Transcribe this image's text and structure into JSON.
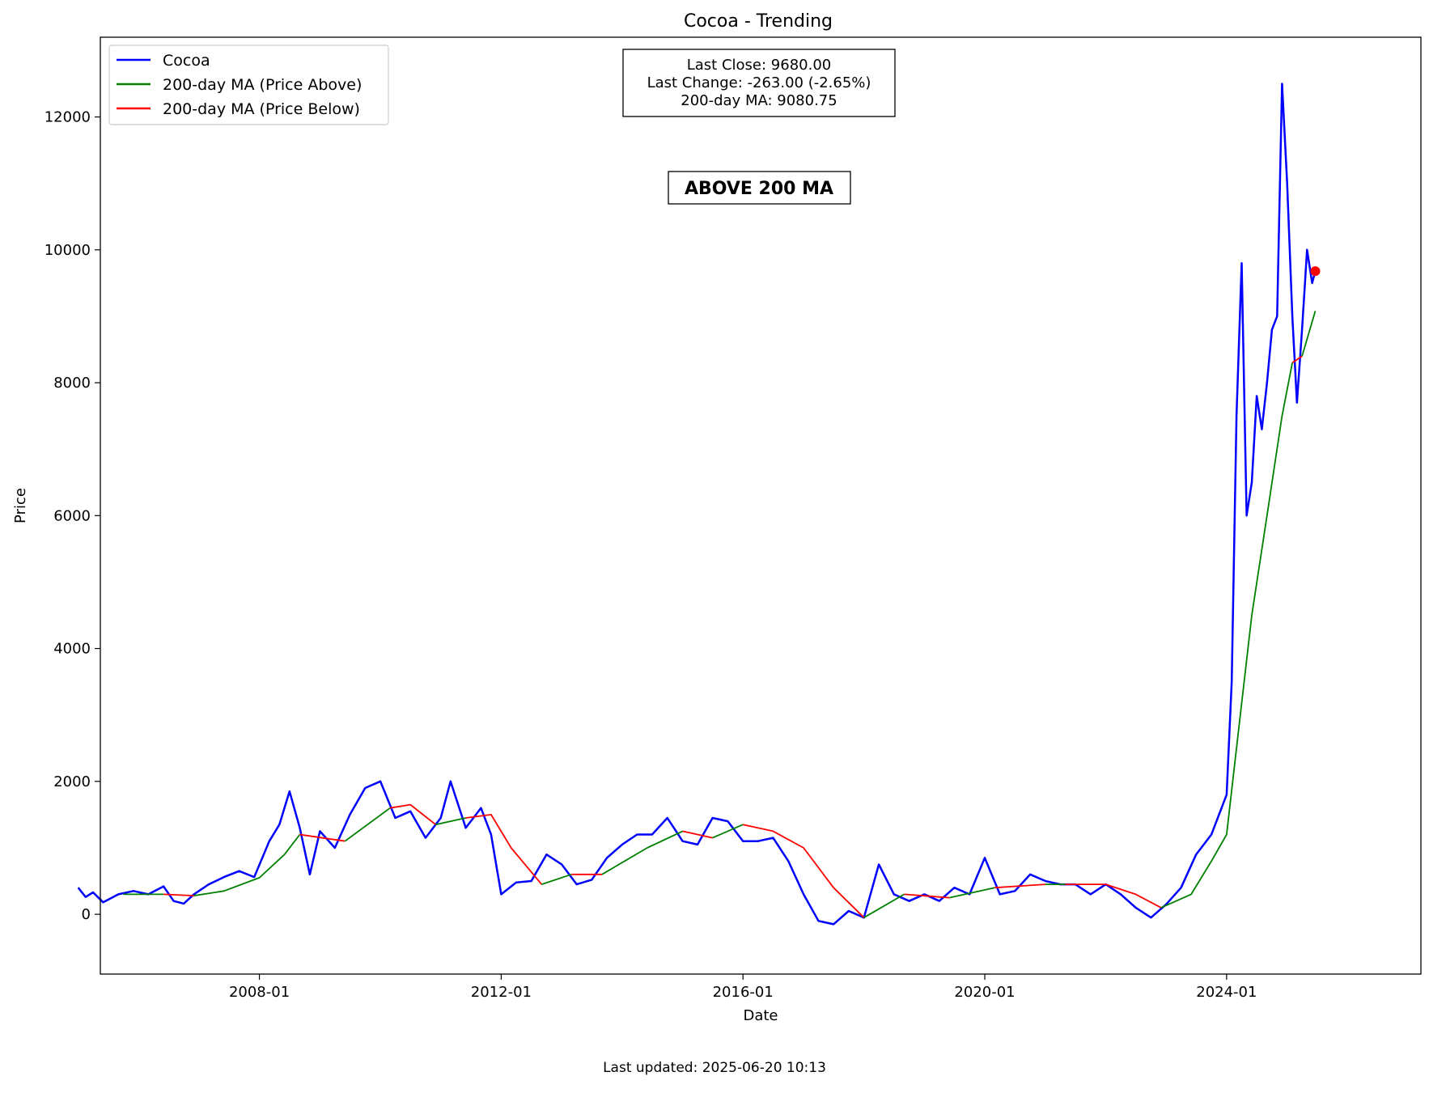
{
  "chart_data": {
    "type": "line",
    "title": "Cocoa - Trending",
    "xlabel": "Date",
    "ylabel": "Price",
    "ylim": [
      -900,
      13200
    ],
    "xlim": [
      "2005-05-15",
      "2027-03-20"
    ],
    "x_ticks": [
      "2008-01",
      "2012-01",
      "2016-01",
      "2020-01",
      "2024-01"
    ],
    "y_ticks": [
      0,
      2000,
      4000,
      6000,
      8000,
      10000,
      12000
    ],
    "grid": false,
    "legend": {
      "placement": "top-left",
      "entries": [
        {
          "label": "Cocoa",
          "color": "#0000ff"
        },
        {
          "label": "200-day MA (Price Above)",
          "color": "#008000"
        },
        {
          "label": "200-day MA (Price Below)",
          "color": "#ff0000"
        }
      ]
    },
    "info_box": [
      "Last Close: 9680.00",
      "Last Change: -263.00 (-2.65%)",
      "200-day MA: 9080.75"
    ],
    "status_badge": {
      "text": "ABOVE 200 MA",
      "color": "#008000"
    },
    "series": [
      {
        "name": "Cocoa",
        "color": "#0000ff",
        "points": [
          [
            "2005-01-01",
            400
          ],
          [
            "2005-02-15",
            260
          ],
          [
            "2005-04-01",
            330
          ],
          [
            "2005-06-01",
            180
          ],
          [
            "2005-09-01",
            300
          ],
          [
            "2005-12-01",
            350
          ],
          [
            "2006-03-01",
            300
          ],
          [
            "2006-06-01",
            420
          ],
          [
            "2006-08-01",
            200
          ],
          [
            "2006-10-01",
            160
          ],
          [
            "2006-12-01",
            300
          ],
          [
            "2007-03-01",
            450
          ],
          [
            "2007-06-01",
            560
          ],
          [
            "2007-09-01",
            650
          ],
          [
            "2007-12-01",
            560
          ],
          [
            "2008-03-01",
            1100
          ],
          [
            "2008-05-01",
            1350
          ],
          [
            "2008-07-01",
            1850
          ],
          [
            "2008-09-01",
            1300
          ],
          [
            "2008-11-01",
            600
          ],
          [
            "2009-01-01",
            1250
          ],
          [
            "2009-04-01",
            1000
          ],
          [
            "2009-07-01",
            1500
          ],
          [
            "2009-10-01",
            1900
          ],
          [
            "2010-01-01",
            2000
          ],
          [
            "2010-04-01",
            1450
          ],
          [
            "2010-07-01",
            1550
          ],
          [
            "2010-10-01",
            1150
          ],
          [
            "2011-01-01",
            1450
          ],
          [
            "2011-03-01",
            2000
          ],
          [
            "2011-06-01",
            1300
          ],
          [
            "2011-09-01",
            1600
          ],
          [
            "2011-11-01",
            1200
          ],
          [
            "2012-01-01",
            300
          ],
          [
            "2012-04-01",
            480
          ],
          [
            "2012-07-01",
            500
          ],
          [
            "2012-10-01",
            900
          ],
          [
            "2013-01-01",
            750
          ],
          [
            "2013-04-01",
            450
          ],
          [
            "2013-07-01",
            520
          ],
          [
            "2013-10-01",
            850
          ],
          [
            "2014-01-01",
            1050
          ],
          [
            "2014-04-01",
            1200
          ],
          [
            "2014-07-01",
            1200
          ],
          [
            "2014-10-01",
            1450
          ],
          [
            "2015-01-01",
            1100
          ],
          [
            "2015-04-01",
            1050
          ],
          [
            "2015-07-01",
            1450
          ],
          [
            "2015-10-01",
            1400
          ],
          [
            "2016-01-01",
            1100
          ],
          [
            "2016-04-01",
            1100
          ],
          [
            "2016-07-01",
            1150
          ],
          [
            "2016-10-01",
            800
          ],
          [
            "2017-01-01",
            300
          ],
          [
            "2017-04-01",
            -100
          ],
          [
            "2017-07-01",
            -150
          ],
          [
            "2017-10-01",
            50
          ],
          [
            "2018-01-01",
            -50
          ],
          [
            "2018-04-01",
            750
          ],
          [
            "2018-07-01",
            300
          ],
          [
            "2018-10-01",
            200
          ],
          [
            "2019-01-01",
            300
          ],
          [
            "2019-04-01",
            200
          ],
          [
            "2019-07-01",
            400
          ],
          [
            "2019-10-01",
            300
          ],
          [
            "2020-01-01",
            850
          ],
          [
            "2020-04-01",
            300
          ],
          [
            "2020-07-01",
            350
          ],
          [
            "2020-10-01",
            600
          ],
          [
            "2021-01-01",
            500
          ],
          [
            "2021-04-01",
            450
          ],
          [
            "2021-07-01",
            450
          ],
          [
            "2021-10-01",
            300
          ],
          [
            "2022-01-01",
            450
          ],
          [
            "2022-04-01",
            300
          ],
          [
            "2022-07-01",
            100
          ],
          [
            "2022-10-01",
            -50
          ],
          [
            "2023-01-01",
            150
          ],
          [
            "2023-04-01",
            400
          ],
          [
            "2023-07-01",
            900
          ],
          [
            "2023-10-01",
            1200
          ],
          [
            "2024-01-01",
            1800
          ],
          [
            "2024-02-01",
            3500
          ],
          [
            "2024-03-01",
            7500
          ],
          [
            "2024-04-01",
            9800
          ],
          [
            "2024-05-01",
            6000
          ],
          [
            "2024-06-01",
            6500
          ],
          [
            "2024-07-01",
            7800
          ],
          [
            "2024-08-01",
            7300
          ],
          [
            "2024-09-01",
            8000
          ],
          [
            "2024-10-01",
            8800
          ],
          [
            "2024-11-01",
            9000
          ],
          [
            "2024-12-01",
            12500
          ],
          [
            "2025-01-01",
            11000
          ],
          [
            "2025-02-01",
            9000
          ],
          [
            "2025-03-01",
            7700
          ],
          [
            "2025-04-01",
            8800
          ],
          [
            "2025-05-01",
            10000
          ],
          [
            "2025-06-01",
            9500
          ],
          [
            "2025-06-20",
            9680
          ]
        ]
      },
      {
        "name": "200-day MA",
        "segments": [
          {
            "color": "#008000",
            "points": [
              [
                "2005-10-01",
                300
              ],
              [
                "2006-03-01",
                300
              ],
              [
                "2006-06-01",
                300
              ]
            ]
          },
          {
            "color": "#ff0000",
            "points": [
              [
                "2006-06-01",
                300
              ],
              [
                "2006-12-01",
                280
              ]
            ]
          },
          {
            "color": "#008000",
            "points": [
              [
                "2006-12-01",
                280
              ],
              [
                "2007-06-01",
                350
              ],
              [
                "2008-01-01",
                550
              ],
              [
                "2008-06-01",
                900
              ],
              [
                "2008-09-01",
                1200
              ]
            ]
          },
          {
            "color": "#ff0000",
            "points": [
              [
                "2008-09-01",
                1200
              ],
              [
                "2009-06-01",
                1100
              ]
            ]
          },
          {
            "color": "#008000",
            "points": [
              [
                "2009-06-01",
                1100
              ],
              [
                "2010-03-01",
                1600
              ]
            ]
          },
          {
            "color": "#ff0000",
            "points": [
              [
                "2010-03-01",
                1600
              ],
              [
                "2010-07-01",
                1650
              ],
              [
                "2010-12-01",
                1350
              ]
            ]
          },
          {
            "color": "#008000",
            "points": [
              [
                "2010-12-01",
                1350
              ],
              [
                "2011-06-01",
                1450
              ]
            ]
          },
          {
            "color": "#ff0000",
            "points": [
              [
                "2011-06-01",
                1450
              ],
              [
                "2011-11-01",
                1500
              ],
              [
                "2012-03-01",
                1000
              ],
              [
                "2012-09-01",
                450
              ]
            ]
          },
          {
            "color": "#008000",
            "points": [
              [
                "2012-09-01",
                450
              ],
              [
                "2013-03-01",
                600
              ]
            ]
          },
          {
            "color": "#ff0000",
            "points": [
              [
                "2013-03-01",
                600
              ],
              [
                "2013-09-01",
                600
              ]
            ]
          },
          {
            "color": "#008000",
            "points": [
              [
                "2013-09-01",
                600
              ],
              [
                "2014-06-01",
                1000
              ],
              [
                "2015-01-01",
                1250
              ]
            ]
          },
          {
            "color": "#ff0000",
            "points": [
              [
                "2015-01-01",
                1250
              ],
              [
                "2015-07-01",
                1150
              ]
            ]
          },
          {
            "color": "#008000",
            "points": [
              [
                "2015-07-01",
                1150
              ],
              [
                "2016-01-01",
                1350
              ]
            ]
          },
          {
            "color": "#ff0000",
            "points": [
              [
                "2016-01-01",
                1350
              ],
              [
                "2016-07-01",
                1250
              ],
              [
                "2017-01-01",
                1000
              ],
              [
                "2017-07-01",
                400
              ],
              [
                "2018-01-01",
                -50
              ]
            ]
          },
          {
            "color": "#008000",
            "points": [
              [
                "2018-01-01",
                -50
              ],
              [
                "2018-09-01",
                300
              ]
            ]
          },
          {
            "color": "#ff0000",
            "points": [
              [
                "2018-09-01",
                300
              ],
              [
                "2019-06-01",
                250
              ]
            ]
          },
          {
            "color": "#008000",
            "points": [
              [
                "2019-06-01",
                250
              ],
              [
                "2020-03-01",
                400
              ]
            ]
          },
          {
            "color": "#ff0000",
            "points": [
              [
                "2020-03-01",
                400
              ],
              [
                "2021-01-01",
                450
              ]
            ]
          },
          {
            "color": "#008000",
            "points": [
              [
                "2021-01-01",
                450
              ],
              [
                "2021-05-01",
                450
              ]
            ]
          },
          {
            "color": "#ff0000",
            "points": [
              [
                "2021-05-01",
                450
              ],
              [
                "2022-01-01",
                450
              ],
              [
                "2022-07-01",
                300
              ],
              [
                "2022-12-01",
                100
              ]
            ]
          },
          {
            "color": "#008000",
            "points": [
              [
                "2022-12-01",
                100
              ],
              [
                "2023-06-01",
                300
              ],
              [
                "2023-10-01",
                800
              ],
              [
                "2024-01-01",
                1200
              ],
              [
                "2024-03-01",
                2500
              ],
              [
                "2024-06-01",
                4500
              ],
              [
                "2024-09-01",
                6000
              ],
              [
                "2024-12-01",
                7500
              ],
              [
                "2025-02-01",
                8300
              ]
            ]
          },
          {
            "color": "#ff0000",
            "points": [
              [
                "2025-02-01",
                8300
              ],
              [
                "2025-04-01",
                8400
              ]
            ]
          },
          {
            "color": "#008000",
            "points": [
              [
                "2025-04-01",
                8400
              ],
              [
                "2025-06-20",
                9080
              ]
            ]
          }
        ]
      }
    ],
    "last_point": {
      "x": "2025-06-20",
      "y": 9680,
      "color": "#ff0000"
    }
  },
  "footer": "Last updated: 2025-06-20 10:13"
}
